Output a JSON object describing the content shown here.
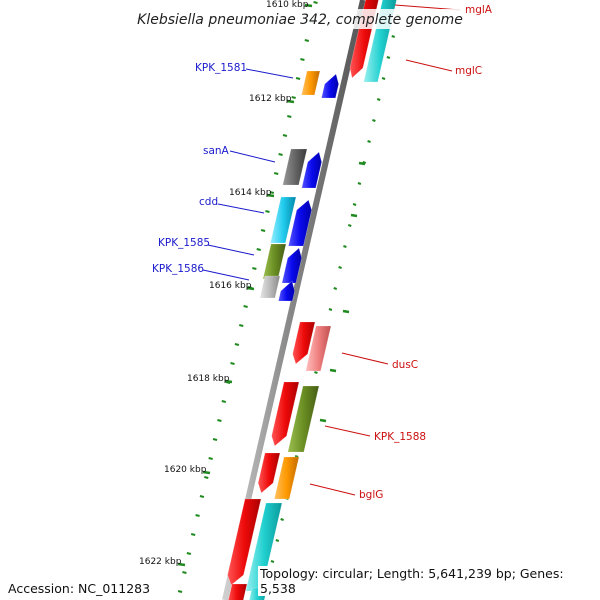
{
  "title": "Klebsiella pneumoniae 342, complete genome",
  "accession_text": "Accession: NC_011283",
  "topology_text": "Topology: circular; Length: 5,641,239 bp; Genes: 5,538",
  "kbp_labels": [
    "1610 kbp",
    "1612 kbp",
    "1614 kbp",
    "1616 kbp",
    "1618 kbp",
    "1620 kbp",
    "1622 kbp"
  ],
  "forward_gene_labels": [
    "KPK_1581",
    "sanA",
    "cdd",
    "KPK_1585",
    "KPK_1586"
  ],
  "reverse_gene_labels": [
    "mglA",
    "mglC",
    "dusC",
    "KPK_1588",
    "bglG"
  ],
  "colors": {
    "forward_label": "#1a1acc",
    "reverse_label": "#cc1010",
    "backbone": "#8a8a8a",
    "tick": "#1f8a1f",
    "cds_blue": "#0a0aee",
    "cds_red": "#ee0a0a",
    "cog_orange": "#ff9900",
    "cog_gray": "#666666",
    "cog_cyan": "#22ccee",
    "cog_olive": "#6b8e23",
    "cog_lightgray": "#bbbbbb",
    "cog_pink": "#f08080",
    "cog_teal": "#22d0d0"
  }
}
